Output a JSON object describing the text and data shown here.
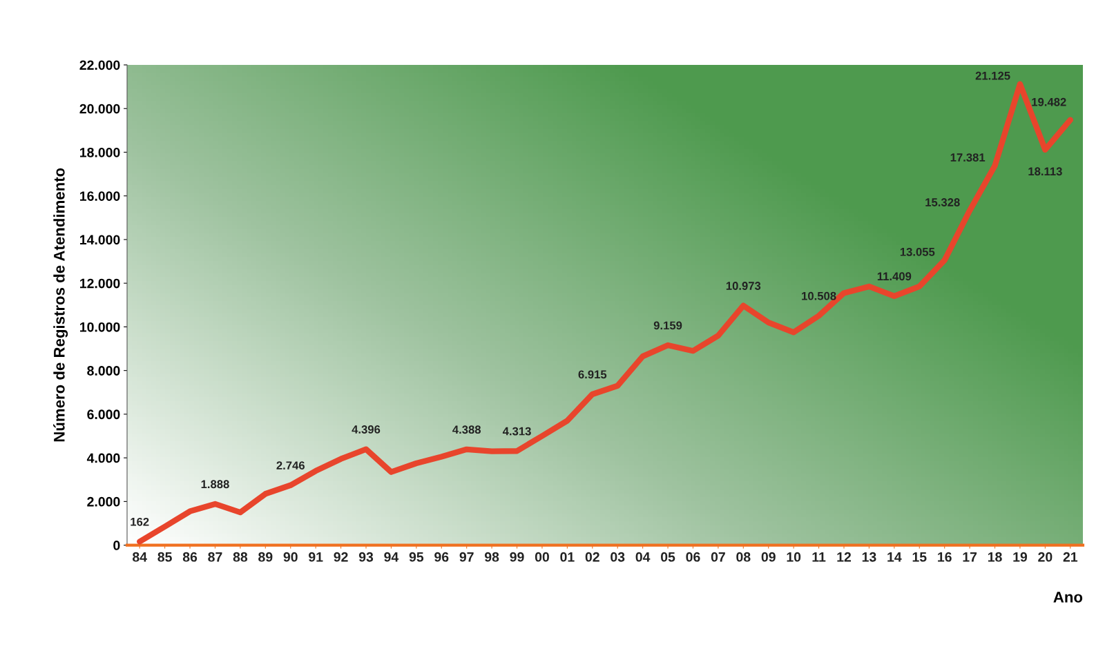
{
  "chart_data": {
    "type": "line",
    "xlabel": "Ano",
    "ylabel": "Número de Registros de Atendimento",
    "categories": [
      "84",
      "85",
      "86",
      "87",
      "88",
      "89",
      "90",
      "91",
      "92",
      "93",
      "94",
      "95",
      "96",
      "97",
      "98",
      "99",
      "00",
      "01",
      "02",
      "03",
      "04",
      "05",
      "06",
      "07",
      "08",
      "09",
      "10",
      "11",
      "12",
      "13",
      "14",
      "15",
      "16",
      "17",
      "18",
      "19",
      "20",
      "21"
    ],
    "series": [
      {
        "color": "#e8452c",
        "values": [
          162,
          850,
          1550,
          1888,
          1500,
          2350,
          2746,
          3400,
          3950,
          4396,
          3350,
          3750,
          4050,
          4388,
          4300,
          4313,
          5000,
          5700,
          6915,
          7300,
          8650,
          9159,
          8900,
          9600,
          10973,
          10200,
          9750,
          10508,
          11550,
          11850,
          11409,
          11850,
          13055,
          15328,
          17381,
          21125,
          18113,
          19482
        ],
        "value_labels": [
          "162",
          null,
          null,
          "1.888",
          null,
          null,
          "2.746",
          null,
          null,
          "4.396",
          null,
          null,
          null,
          "4.388",
          null,
          "4.313",
          null,
          null,
          "6.915",
          null,
          null,
          "9.159",
          null,
          null,
          "10.973",
          null,
          null,
          "10.508",
          null,
          null,
          "11.409",
          null,
          "13.055",
          "15.328",
          "17.381",
          "21.125",
          "18.113",
          "19.482"
        ]
      }
    ],
    "ylim": [
      0,
      22000
    ],
    "yticks": [
      {
        "value": 0,
        "label": "0"
      },
      {
        "value": 2000,
        "label": "2.000"
      },
      {
        "value": 4000,
        "label": "4.000"
      },
      {
        "value": 6000,
        "label": "6.000"
      },
      {
        "value": 8000,
        "label": "8.000"
      },
      {
        "value": 10000,
        "label": "10.000"
      },
      {
        "value": 12000,
        "label": "12.000"
      },
      {
        "value": 14000,
        "label": "14.000"
      },
      {
        "value": 16000,
        "label": "16.000"
      },
      {
        "value": 18000,
        "label": "18.000"
      },
      {
        "value": 20000,
        "label": "20.000"
      },
      {
        "value": 22000,
        "label": "22.000"
      }
    ],
    "grid": false,
    "legend": false,
    "marker": "none",
    "line_style": "solid"
  }
}
